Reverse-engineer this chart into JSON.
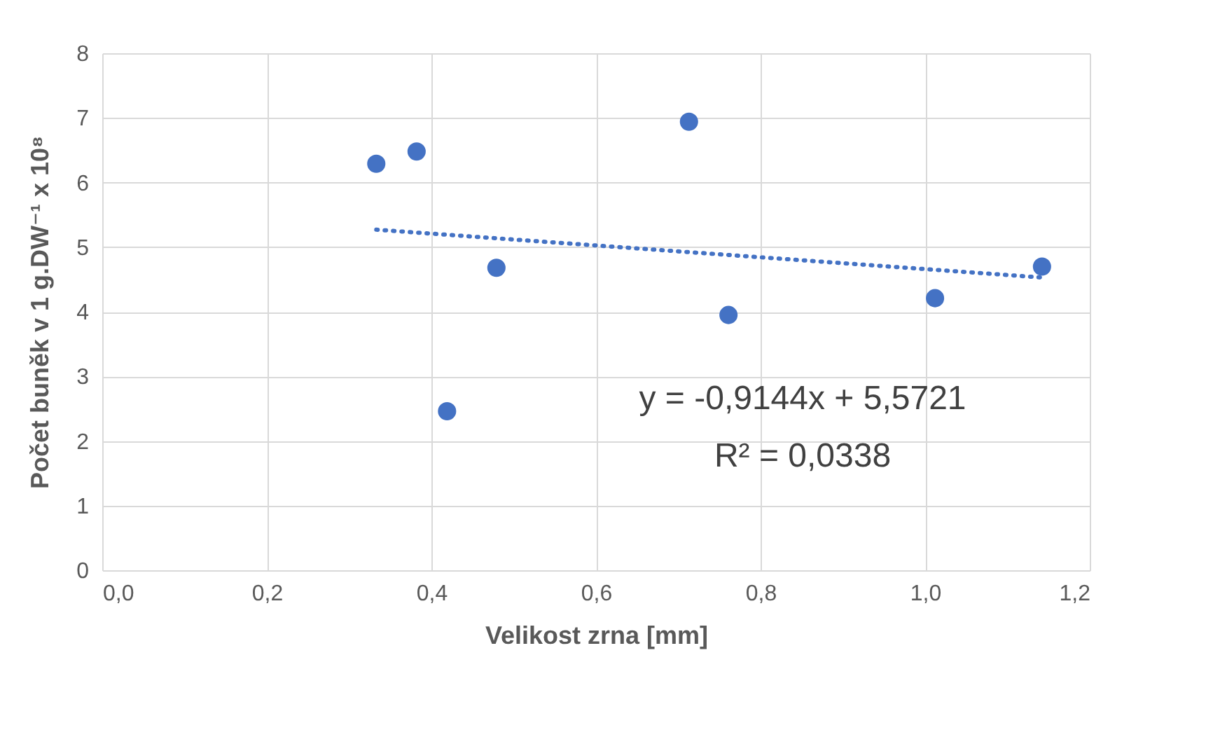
{
  "chart_data": {
    "type": "scatter",
    "xlabel": "Velikost zrna [mm]",
    "ylabel": "Počet buněk v 1 g.DW⁻¹ x 10⁸",
    "xlim": [
      0,
      1.2
    ],
    "xticks": [
      {
        "value": 0,
        "label": "0,0"
      },
      {
        "value": 0.2,
        "label": "0,2"
      },
      {
        "value": 0.4,
        "label": "0,4"
      },
      {
        "value": 0.6,
        "label": "0,6"
      },
      {
        "value": 0.8,
        "label": "0,8"
      },
      {
        "value": 1,
        "label": "1,0"
      },
      {
        "value": 1.2,
        "label": "1,2"
      }
    ],
    "ylim": [
      0,
      8
    ],
    "yticks": [
      0,
      1,
      2,
      3,
      4,
      5,
      6,
      7,
      8
    ],
    "grid": true,
    "series": [
      {
        "color": "#4472c4",
        "marker": "circle",
        "x": [
          0.333,
          0.382,
          0.419,
          0.479,
          0.713,
          0.761,
          1.012,
          1.142
        ],
        "values": [
          6.29,
          6.48,
          2.46,
          4.68,
          6.94,
          3.95,
          4.21,
          4.7
        ]
      },
      {
        "type": "line",
        "color": "#4472c4",
        "line_style": "dotted",
        "x": [
          0.333,
          1.142
        ],
        "values": [
          5.27,
          4.53
        ]
      }
    ],
    "annotations": [
      "y = -0,9144x + 5,5721",
      "R² = 0,0338"
    ]
  }
}
